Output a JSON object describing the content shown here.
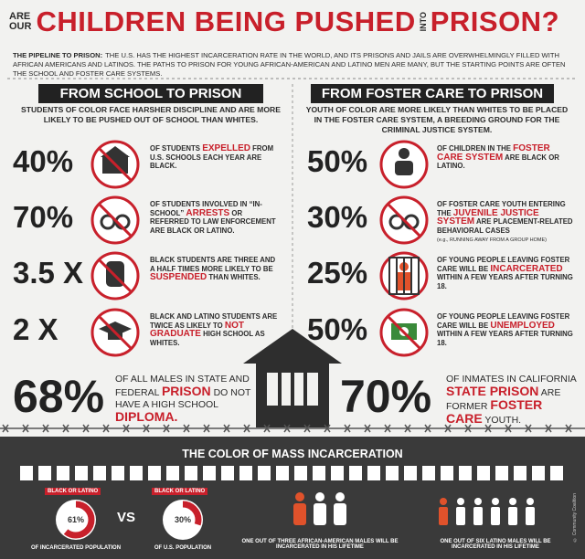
{
  "header": {
    "pre_top": "ARE",
    "pre_bottom": "OUR",
    "title_main": "CHILDREN BEING PUSHED",
    "into": "INTO",
    "title_end": "PRISON?"
  },
  "intro": {
    "label": "THE PIPELINE TO PRISON:",
    "text": "THE U.S. HAS THE HIGHEST INCARCERATION RATE IN THE WORLD, AND ITS PRISONS AND JAILS ARE OVERWHELMINGLY FILLED WITH AFRICAN AMERICANS AND LATINOS. THE PATHS TO PRISON FOR YOUNG AFRICAN-AMERICAN AND LATINO MEN ARE MANY, BUT THE STARTING POINTS ARE OFTEN THE SCHOOL AND FOSTER CARE SYSTEMS."
  },
  "left": {
    "heading": "FROM SCHOOL TO PRISON",
    "lead": "STUDENTS OF COLOR FACE HARSHER DISCIPLINE AND ARE MORE LIKELY TO BE PUSHED OUT OF SCHOOL THAN WHITES.",
    "stats": [
      {
        "figure": "40%",
        "text": [
          "OF STUDENTS ",
          "EXPELLED",
          " FROM U.S. SCHOOLS EACH YEAR ARE BLACK."
        ]
      },
      {
        "figure": "70%",
        "text": [
          "OF STUDENTS INVOLVED IN “IN-SCHOOL” ",
          "ARRESTS",
          " OR REFERRED TO LAW ENFORCEMENT ARE BLACK OR LATINO."
        ]
      },
      {
        "figure": "3.5 X",
        "text": [
          "BLACK STUDENTS ARE THREE AND A HALF TIMES MORE LIKELY TO BE ",
          "SUSPENDED",
          " THAN WHITES."
        ]
      },
      {
        "figure": "2 X",
        "text": [
          "BLACK AND LATINO STUDENTS ARE TWICE AS LIKELY TO ",
          "NOT GRADUATE",
          " HIGH SCHOOL AS WHITES."
        ]
      }
    ]
  },
  "right": {
    "heading": "FROM FOSTER CARE TO PRISON",
    "lead": "YOUTH OF COLOR ARE MORE LIKELY THAN WHITES TO BE PLACED IN THE FOSTER CARE SYSTEM, A BREEDING GROUND FOR THE CRIMINAL JUSTICE SYSTEM.",
    "stats": [
      {
        "figure": "50%",
        "text": [
          "OF CHILDREN IN THE ",
          "FOSTER CARE SYSTEM",
          " ARE BLACK OR LATINO."
        ]
      },
      {
        "figure": "30%",
        "text": [
          "OF FOSTER CARE YOUTH ENTERING THE ",
          "JUVENILE JUSTICE SYSTEM",
          " ARE PLACEMENT-RELATED BEHAVIORAL CASES"
        ],
        "note": "(e.g., RUNNING AWAY FROM A GROUP HOME)"
      },
      {
        "figure": "25%",
        "text": [
          "OF YOUNG PEOPLE LEAVING FOSTER CARE WILL BE ",
          "INCARCERATED",
          " WITHIN A FEW YEARS AFTER TURNING 18."
        ]
      },
      {
        "figure": "50%",
        "text": [
          "OF YOUNG PEOPLE LEAVING FOSTER CARE WILL BE ",
          "UNEMPLOYED",
          " WITHIN A FEW YEARS AFTER TURNING 18."
        ]
      }
    ]
  },
  "bottom_left": {
    "figure": "68%",
    "text": [
      "OF ALL MALES IN STATE AND FEDERAL ",
      "PRISON",
      " DO NOT HAVE A HIGH SCHOOL ",
      "DIPLOMA."
    ]
  },
  "bottom_right": {
    "figure": "70%",
    "text": [
      "OF INMATES IN CALIFORNIA ",
      "STATE PRISON",
      " ARE FORMER ",
      "FOSTER CARE",
      " YOUTH."
    ]
  },
  "mass": {
    "title": "THE COLOR OF MASS INCARCERATION",
    "vs": "VS",
    "donuts": [
      {
        "top": "BLACK OR LATINO",
        "value": 61,
        "label": "61%",
        "bottom": "OF INCARCERATED POPULATION"
      },
      {
        "top": "BLACK OR LATINO",
        "value": 30,
        "label": "30%",
        "bottom": "OF U.S. POPULATION"
      }
    ],
    "people": [
      {
        "caption": "ONE OUT OF THREE AFRICAN-AMERICAN MALES WILL BE INCARCERATED IN HIS LIFETIME"
      },
      {
        "caption": "ONE OUT OF SIX LATINO MALES WILL BE INCARCERATED IN HIS LIFETIME"
      }
    ],
    "credit": "© Community Coalition"
  }
}
